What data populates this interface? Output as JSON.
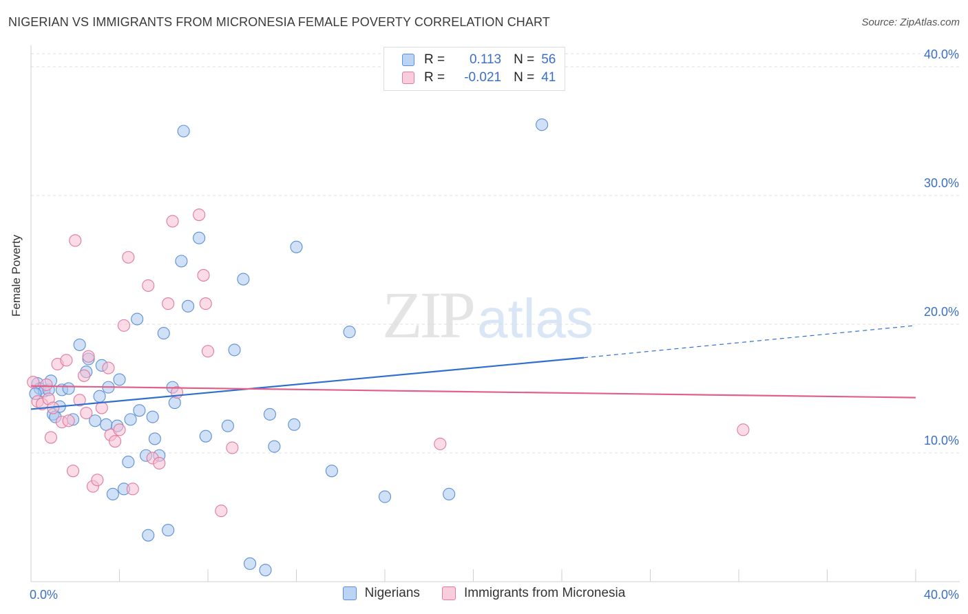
{
  "chart_data": {
    "type": "scatter",
    "title": "NIGERIAN VS IMMIGRANTS FROM MICRONESIA FEMALE POVERTY CORRELATION CHART",
    "source": "Source: ZipAtlas.com",
    "xlabel": "",
    "ylabel": "Female Poverty",
    "xlim": [
      0,
      40
    ],
    "ylim": [
      0,
      40
    ],
    "x_tick_labels": [
      "0.0%",
      "40.0%"
    ],
    "y_tick_labels": [
      "10.0%",
      "20.0%",
      "30.0%",
      "40.0%"
    ],
    "y_ticks": [
      10,
      20,
      30,
      40
    ],
    "grid": true,
    "watermark": {
      "zip": "ZIP",
      "atlas": "atlas"
    },
    "legend_top": [
      {
        "r_label": "R =",
        "r_value": "0.113",
        "n_label": "N =",
        "n_value": "56"
      },
      {
        "r_label": "R =",
        "r_value": "-0.021",
        "n_label": "N =",
        "n_value": "41"
      }
    ],
    "series": [
      {
        "name": "Nigerians",
        "color": "#a9c8f0",
        "edge": "#5b8fd6",
        "line_color": "#2f6fcd",
        "trend": {
          "x0": 0,
          "y0": 13.4,
          "x1": 25,
          "y1": 17.4,
          "dash_to_x": 40,
          "dash_y": 19.9
        },
        "points": [
          [
            0.3,
            15.4
          ],
          [
            0.4,
            15.0
          ],
          [
            0.6,
            14.8
          ],
          [
            0.8,
            14.9
          ],
          [
            0.9,
            15.6
          ],
          [
            1.0,
            13.0
          ],
          [
            1.1,
            12.8
          ],
          [
            1.3,
            13.6
          ],
          [
            1.4,
            14.9
          ],
          [
            1.7,
            15.0
          ],
          [
            1.9,
            12.6
          ],
          [
            2.2,
            18.4
          ],
          [
            2.5,
            16.3
          ],
          [
            2.6,
            17.3
          ],
          [
            2.9,
            12.5
          ],
          [
            3.1,
            14.4
          ],
          [
            3.2,
            16.8
          ],
          [
            3.4,
            12.2
          ],
          [
            3.5,
            15.1
          ],
          [
            3.7,
            6.8
          ],
          [
            3.9,
            12.1
          ],
          [
            4.0,
            15.7
          ],
          [
            4.2,
            7.2
          ],
          [
            4.4,
            9.3
          ],
          [
            4.5,
            12.6
          ],
          [
            4.8,
            20.4
          ],
          [
            4.9,
            13.3
          ],
          [
            5.2,
            9.8
          ],
          [
            5.3,
            3.6
          ],
          [
            5.5,
            12.8
          ],
          [
            5.6,
            11.1
          ],
          [
            5.8,
            9.8
          ],
          [
            6.0,
            19.3
          ],
          [
            6.2,
            4.0
          ],
          [
            6.4,
            15.1
          ],
          [
            6.5,
            13.9
          ],
          [
            6.8,
            24.9
          ],
          [
            6.9,
            35.0
          ],
          [
            7.1,
            21.4
          ],
          [
            7.6,
            26.7
          ],
          [
            7.9,
            11.3
          ],
          [
            8.9,
            12.1
          ],
          [
            9.2,
            18.0
          ],
          [
            9.6,
            23.5
          ],
          [
            9.9,
            1.4
          ],
          [
            10.6,
            0.9
          ],
          [
            10.8,
            13.0
          ],
          [
            11.0,
            10.5
          ],
          [
            11.9,
            12.2
          ],
          [
            12.0,
            26.0
          ],
          [
            13.6,
            8.6
          ],
          [
            14.4,
            19.4
          ],
          [
            16.0,
            6.6
          ],
          [
            18.9,
            6.8
          ],
          [
            23.1,
            35.5
          ],
          [
            0.2,
            14.6
          ]
        ]
      },
      {
        "name": "Immigrants from Micronesia",
        "color": "#f7bdd0",
        "edge": "#e07aa0",
        "line_color": "#e0608c",
        "trend": {
          "x0": 0,
          "y0": 15.2,
          "x1": 40,
          "y1": 14.3
        },
        "points": [
          [
            0.1,
            15.5
          ],
          [
            0.3,
            14.0
          ],
          [
            0.5,
            13.8
          ],
          [
            0.7,
            15.3
          ],
          [
            0.8,
            14.2
          ],
          [
            0.9,
            11.2
          ],
          [
            1.0,
            13.5
          ],
          [
            1.2,
            16.9
          ],
          [
            1.4,
            12.4
          ],
          [
            1.6,
            17.2
          ],
          [
            1.7,
            12.5
          ],
          [
            1.9,
            8.6
          ],
          [
            2.0,
            26.5
          ],
          [
            2.2,
            14.1
          ],
          [
            2.4,
            16.0
          ],
          [
            2.5,
            13.1
          ],
          [
            2.6,
            17.5
          ],
          [
            2.8,
            7.4
          ],
          [
            3.0,
            7.9
          ],
          [
            3.2,
            13.5
          ],
          [
            3.5,
            16.6
          ],
          [
            3.6,
            11.4
          ],
          [
            3.8,
            10.9
          ],
          [
            4.0,
            11.8
          ],
          [
            4.2,
            19.9
          ],
          [
            4.4,
            25.2
          ],
          [
            4.6,
            7.2
          ],
          [
            5.3,
            23.0
          ],
          [
            5.5,
            9.6
          ],
          [
            5.8,
            9.2
          ],
          [
            6.2,
            21.6
          ],
          [
            6.4,
            28.0
          ],
          [
            6.6,
            14.7
          ],
          [
            7.6,
            28.5
          ],
          [
            7.8,
            23.8
          ],
          [
            7.9,
            21.6
          ],
          [
            8.0,
            17.9
          ],
          [
            8.6,
            5.5
          ],
          [
            9.1,
            10.4
          ],
          [
            18.5,
            10.7
          ],
          [
            32.2,
            11.8
          ]
        ]
      }
    ]
  }
}
